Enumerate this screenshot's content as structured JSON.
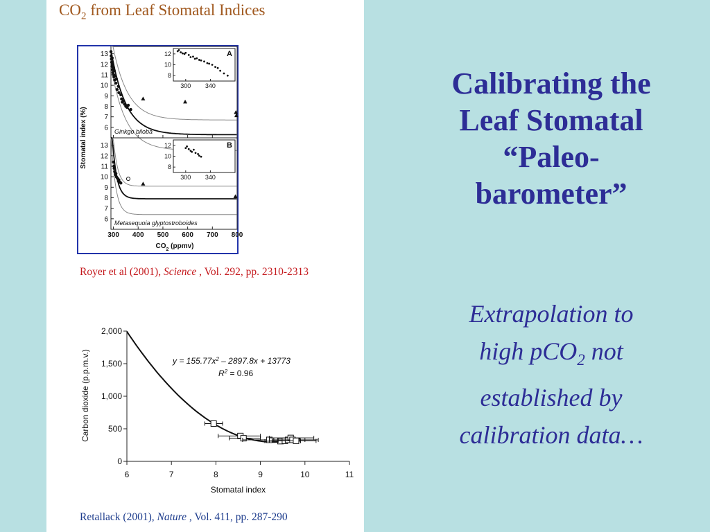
{
  "slide": {
    "title_lines": [
      "Calibrating the",
      "Leaf Stomatal",
      "“Paleo-",
      "barometer”"
    ],
    "note_line1": "Extrapolation to",
    "note_line2_a": "high pCO",
    "note_line2_sub": "2",
    "note_line2_b": " not",
    "note_line3": "established by",
    "note_line4": "calibration data…"
  },
  "panel": {
    "title_a": "CO",
    "title_sub": "2",
    "title_b": " from Leaf Stomatal Indices",
    "citation1_a": "Royer et al (2001), ",
    "citation1_journal": "Science",
    "citation1_b": " , Vol. 292, pp. 2310-2313",
    "citation2_a": "Retallack (2001), ",
    "citation2_journal": "Nature",
    "citation2_b": " , Vol. 411, pp. 287-290"
  },
  "colors": {
    "background": "#b8e0e2",
    "title_text": "#2d2d96",
    "panel_title": "#a0581e",
    "citation1": "#c4181c",
    "citation2": "#1c3b8c",
    "frame": "#2233aa"
  },
  "chart_data": [
    {
      "type": "scatter",
      "species": "Ginkgo biloba",
      "panel_letter": "A",
      "ylabel": "Stomatal index (%)",
      "xlabel_a": "CO",
      "xlabel_sub": "2",
      "xlabel_b": " (ppmv)",
      "xlim": [
        290,
        800
      ],
      "ylim": [
        5,
        13.7
      ],
      "xticks": [
        "300",
        "400",
        "500",
        "600",
        "700",
        "800"
      ],
      "yticks": [
        "6",
        "7",
        "8",
        "9",
        "10",
        "11",
        "12",
        "13"
      ],
      "curve": {
        "type": "power",
        "amplitude": 9.5,
        "asymptote": 5.3,
        "x0": 280,
        "scale": 60
      },
      "band_upper_offset": 1.4,
      "band_lower_offset": 1.5,
      "points": [
        [
          290,
          13.2
        ],
        [
          291,
          12.8
        ],
        [
          292,
          12.5
        ],
        [
          293,
          12.2
        ],
        [
          294,
          11.8
        ],
        [
          295,
          12.6
        ],
        [
          296,
          11.5
        ],
        [
          297,
          12.0
        ],
        [
          298,
          11.2
        ],
        [
          300,
          11.7
        ],
        [
          301,
          11.0
        ],
        [
          302,
          10.8
        ],
        [
          303,
          11.4
        ],
        [
          305,
          10.5
        ],
        [
          307,
          10.9
        ],
        [
          310,
          10.2
        ],
        [
          312,
          10.6
        ],
        [
          315,
          9.6
        ],
        [
          320,
          9.9
        ],
        [
          322,
          9.3
        ],
        [
          330,
          9.1
        ],
        [
          333,
          8.7
        ],
        [
          336,
          8.4
        ],
        [
          340,
          8.5
        ],
        [
          345,
          8.2
        ],
        [
          350,
          8.0
        ],
        [
          355,
          7.9
        ],
        [
          360,
          8.1
        ],
        [
          370,
          7.7
        ]
      ],
      "triangles": [
        [
          420,
          8.7
        ],
        [
          590,
          8.4
        ],
        [
          795,
          7.4
        ],
        [
          797,
          7.1
        ]
      ],
      "inset": {
        "xticks": [
          "300",
          "340"
        ],
        "yticks": [
          "8",
          "10",
          "12"
        ],
        "xlim": [
          280,
          380
        ],
        "ylim": [
          7,
          13
        ],
        "points": [
          [
            287,
            12.5
          ],
          [
            289,
            12.7
          ],
          [
            292,
            12.3
          ],
          [
            295,
            12.1
          ],
          [
            298,
            12.0
          ],
          [
            300,
            12.2
          ],
          [
            305,
            11.8
          ],
          [
            308,
            11.4
          ],
          [
            312,
            11.5
          ],
          [
            315,
            11.1
          ],
          [
            318,
            11.2
          ],
          [
            322,
            10.9
          ],
          [
            325,
            10.8
          ],
          [
            330,
            10.6
          ],
          [
            335,
            10.3
          ],
          [
            338,
            10.2
          ],
          [
            343,
            10.0
          ],
          [
            348,
            9.6
          ],
          [
            352,
            9.4
          ],
          [
            356,
            8.9
          ],
          [
            362,
            8.4
          ],
          [
            368,
            8.0
          ]
        ]
      }
    },
    {
      "type": "scatter",
      "species": "Metasequoia glyptostroboides",
      "panel_letter": "B",
      "xlim": [
        290,
        800
      ],
      "ylim": [
        5,
        13.7
      ],
      "yticks": [
        "6",
        "7",
        "8",
        "9",
        "10",
        "11",
        "12",
        "13"
      ],
      "curve": {
        "type": "power",
        "amplitude": 7.8,
        "asymptote": 7.9,
        "x0": 290,
        "scale": 18
      },
      "band_upper_offset": 1.2,
      "band_lower_offset": 1.5,
      "points": [
        [
          300,
          11.4
        ],
        [
          302,
          11.0
        ],
        [
          303,
          10.8
        ],
        [
          305,
          10.5
        ],
        [
          307,
          10.4
        ],
        [
          308,
          10.2
        ],
        [
          310,
          10.3
        ],
        [
          312,
          10.0
        ],
        [
          315,
          9.9
        ],
        [
          318,
          9.8
        ],
        [
          320,
          9.6
        ],
        [
          322,
          9.7
        ],
        [
          325,
          9.5
        ],
        [
          330,
          9.4
        ]
      ],
      "circles": [
        [
          360,
          9.8
        ]
      ],
      "triangles": [
        [
          420,
          9.3
        ],
        [
          793,
          8.1
        ]
      ],
      "inset": {
        "xticks": [
          "300",
          "340"
        ],
        "yticks": [
          "8",
          "10",
          "12"
        ],
        "xlim": [
          280,
          380
        ],
        "ylim": [
          7,
          13
        ],
        "points": [
          [
            300,
            11.5
          ],
          [
            302,
            11.8
          ],
          [
            305,
            11.3
          ],
          [
            308,
            11.0
          ],
          [
            310,
            10.8
          ],
          [
            313,
            11.2
          ],
          [
            316,
            10.6
          ],
          [
            320,
            10.4
          ],
          [
            322,
            10.1
          ],
          [
            325,
            9.9
          ]
        ]
      }
    },
    {
      "type": "scatter",
      "ylabel": "Carbon dioxide (p.p.m.v.)",
      "xlabel": "Stomatal index",
      "equation_y": "y = 155.77x",
      "equation_sup": "2",
      "equation_rest": " – 2897.8x + 13773",
      "r2_label": "R",
      "r2_sup": "2",
      "r2_value": " = 0.96",
      "xlim": [
        6,
        11
      ],
      "ylim": [
        0,
        2000
      ],
      "xticks": [
        "6",
        "7",
        "8",
        "9",
        "10",
        "11"
      ],
      "yticks": [
        "0",
        "500",
        "1,000",
        "1,500",
        "2,000"
      ],
      "fit": {
        "a": 155.77,
        "b": -2897.8,
        "c": 13773
      },
      "points": [
        [
          7.95,
          580,
          7.75,
          8.15
        ],
        [
          8.55,
          390,
          8.05,
          9.0
        ],
        [
          8.62,
          355,
          8.3,
          9.0
        ],
        [
          9.2,
          330,
          8.6,
          9.8
        ],
        [
          9.45,
          310,
          9.1,
          9.9
        ],
        [
          9.55,
          315,
          9.2,
          9.9
        ],
        [
          9.62,
          330,
          9.3,
          10.0
        ],
        [
          9.68,
          360,
          9.2,
          10.2
        ],
        [
          9.72,
          330,
          9.3,
          10.3
        ],
        [
          9.8,
          315,
          9.4,
          10.25
        ]
      ]
    }
  ]
}
